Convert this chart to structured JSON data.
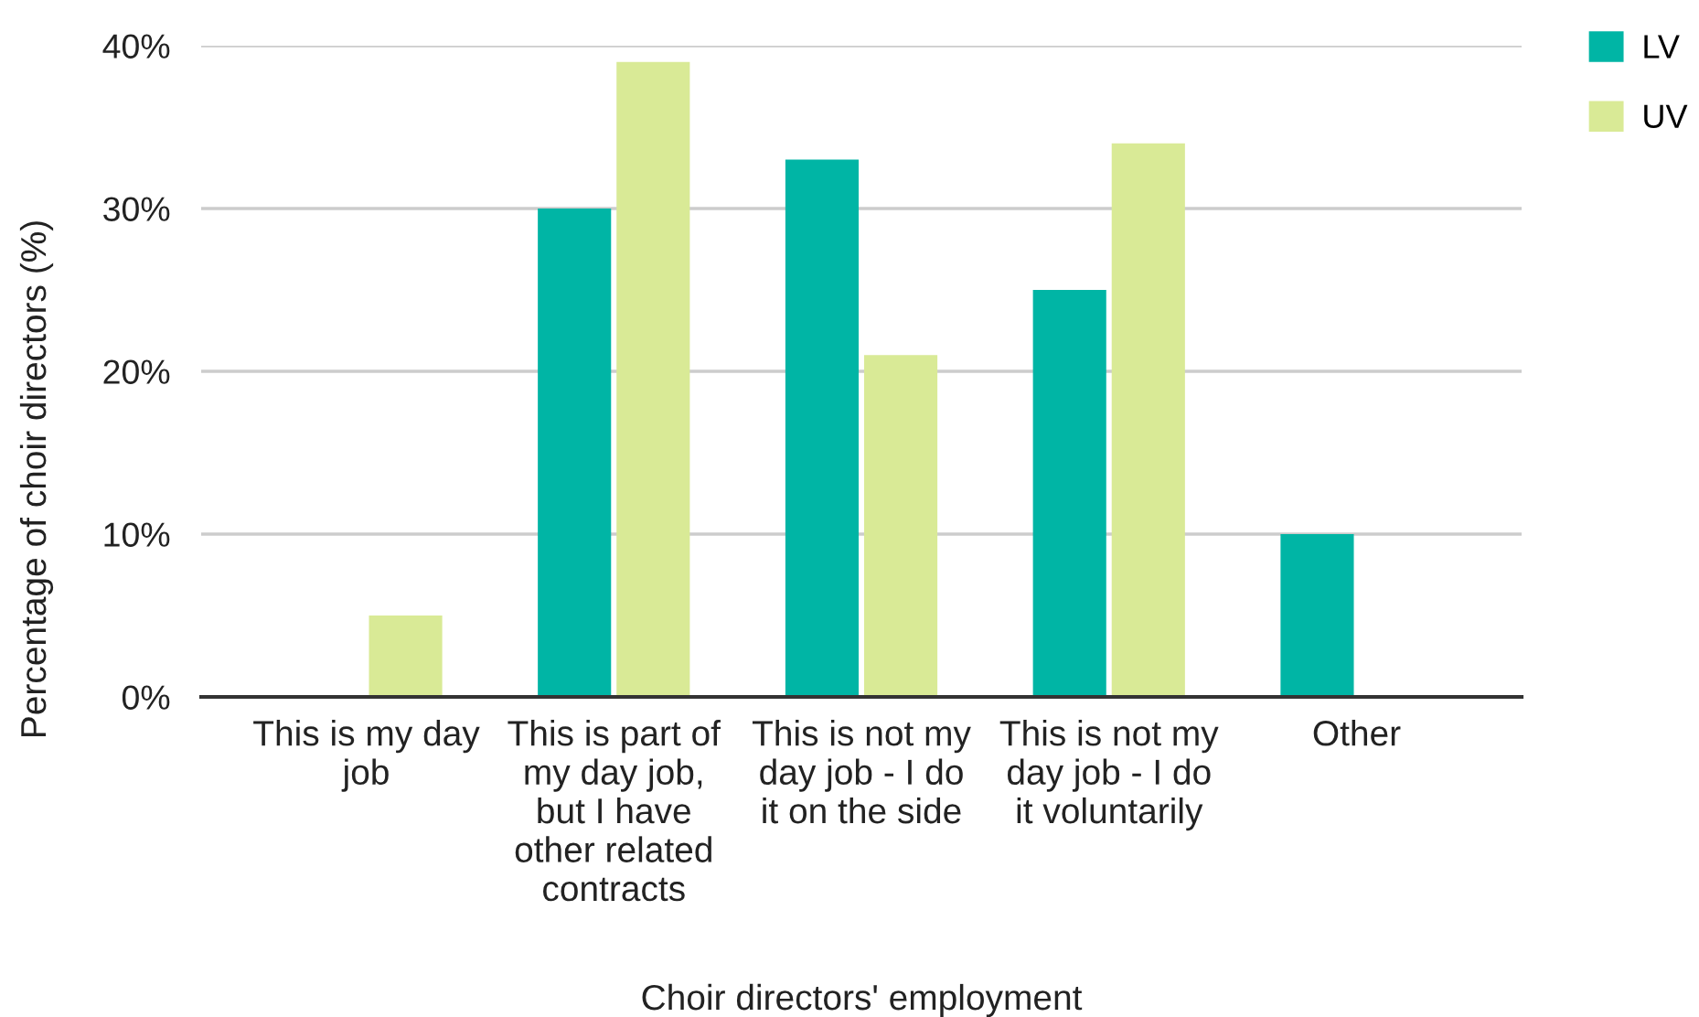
{
  "chart_data": {
    "type": "bar",
    "xlabel": "Choir directors' employment",
    "ylabel": "Percentage of choir directors (%)",
    "categories": [
      "This is my day\njob",
      "This is part of\nmy day job,\nbut I have\nother related\ncontracts",
      "This is not my\nday job - I do\nit on the side",
      "This is not my\nday job - I do\nit voluntarily",
      "Other"
    ],
    "series": [
      {
        "name": "LV",
        "color": "#00b5a5",
        "values": [
          0,
          30,
          33,
          25,
          10
        ]
      },
      {
        "name": "UV",
        "color": "#d9ea96",
        "values": [
          5,
          39,
          21,
          34,
          0
        ]
      }
    ],
    "ylim": [
      0,
      40
    ],
    "yticks": [
      {
        "value": 0,
        "label": "0%"
      },
      {
        "value": 10,
        "label": "10%"
      },
      {
        "value": 20,
        "label": "20%"
      },
      {
        "value": 30,
        "label": "30%"
      },
      {
        "value": 40,
        "label": "40%"
      }
    ],
    "grid": "y",
    "legend": "top right"
  }
}
